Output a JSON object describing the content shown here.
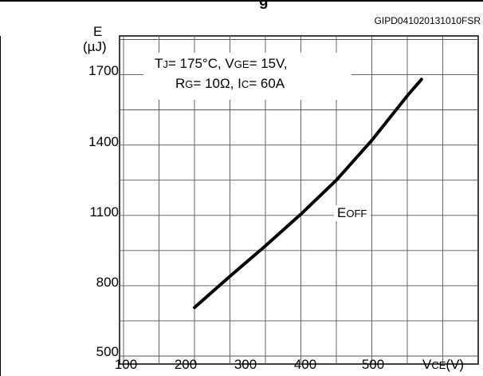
{
  "header": {
    "title_fragment": "g",
    "doc_code": "GIPD041020131010FSR"
  },
  "conditions": {
    "tj_main": "T",
    "tj_sub": "J",
    "tj_value": "= 175°C, V",
    "vge_sub": "GE",
    "vge_value": "= 15V,",
    "rg_main": "R",
    "rg_sub": "G",
    "rg_value": "= 10Ω, I",
    "ic_sub": "C",
    "ic_value": "= 60A"
  },
  "curve_label": {
    "main": "E",
    "sub": "OFF"
  },
  "chart_data": {
    "type": "line",
    "title": "",
    "ylabel": "E",
    "yunit": "(µJ)",
    "xlabel_main": "V",
    "xlabel_sub": "CE",
    "xlabel_unit": "(V)",
    "xlim": [
      100,
      600
    ],
    "ylim": [
      500,
      1900
    ],
    "x_ticks": [
      100,
      200,
      300,
      400,
      500
    ],
    "y_ticks": [
      500,
      800,
      1100,
      1400,
      1700
    ],
    "grid": true,
    "series": [
      {
        "name": "EOFF",
        "x": [
          200,
          250,
          300,
          350,
          400,
          450,
          500,
          520
        ],
        "y": [
          707,
          840,
          970,
          1105,
          1250,
          1420,
          1610,
          1680
        ]
      }
    ]
  }
}
